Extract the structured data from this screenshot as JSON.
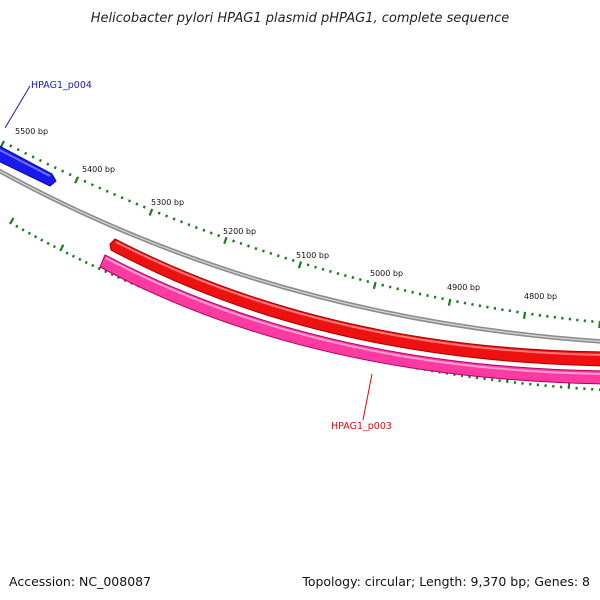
{
  "title": "Helicobacter pylori HPAG1 plasmid pHPAG1, complete sequence",
  "footer": {
    "accession": "Accession: NC_008087",
    "summary": "Topology: circular; Length: 9,370 bp; Genes: 8"
  },
  "backbone_color": "#8c8c8c",
  "tick_color": "#1e7a1e",
  "scale": {
    "labels": [
      {
        "text": "5500 bp"
      },
      {
        "text": "5400 bp"
      },
      {
        "text": "5300 bp"
      },
      {
        "text": "5200 bp"
      },
      {
        "text": "5100 bp"
      },
      {
        "text": "5000 bp"
      },
      {
        "text": "4900 bp"
      },
      {
        "text": "4800 bp"
      }
    ]
  },
  "genes": [
    {
      "name": "HPAG1_p004",
      "color": "#1a1aee",
      "label_color": "#1a1ab4"
    },
    {
      "name": "HPAG1_p003",
      "color": "#ee1111",
      "label_color": "#cc1111"
    },
    {
      "name": "",
      "color": "#ff3aa0",
      "label_color": "#cc1188"
    }
  ]
}
